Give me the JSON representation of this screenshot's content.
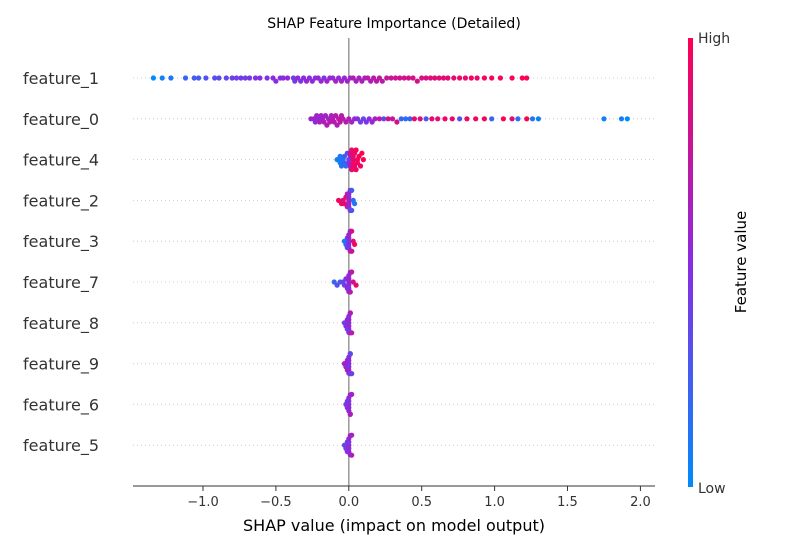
{
  "chart_data": {
    "type": "scatter",
    "title": "SHAP Feature Importance (Detailed)",
    "xlabel": "SHAP value (impact on model output)",
    "xlim": [
      -1.48,
      2.1
    ],
    "xticks": [
      -1.0,
      -0.5,
      0.0,
      0.5,
      1.0,
      1.5,
      2.0
    ],
    "xtick_labels": [
      "−1.0",
      "−0.5",
      "0.0",
      "0.5",
      "1.0",
      "1.5",
      "2.0"
    ],
    "grid": false,
    "colors": {
      "low": "#008bfb",
      "mid": "#8a2be2",
      "high": "#ff0051",
      "zero_line": "#999999",
      "row_guide": "#cccccc"
    },
    "colorbar": {
      "label": "Feature value",
      "high_label": "High",
      "low_label": "Low"
    },
    "features": [
      {
        "name": "feature_1",
        "points": [
          [
            -1.34,
            0.0
          ],
          [
            -1.28,
            0.05
          ],
          [
            -1.22,
            0.1
          ],
          [
            -1.12,
            0.2
          ],
          [
            -1.06,
            0.25
          ],
          [
            -1.03,
            0.25
          ],
          [
            -0.98,
            0.3
          ],
          [
            -0.92,
            0.3
          ],
          [
            -0.89,
            0.35
          ],
          [
            -0.84,
            0.35
          ],
          [
            -0.8,
            0.4
          ],
          [
            -0.77,
            0.4
          ],
          [
            -0.74,
            0.42
          ],
          [
            -0.71,
            0.4
          ],
          [
            -0.68,
            0.45
          ],
          [
            -0.64,
            0.45
          ],
          [
            -0.61,
            0.5
          ],
          [
            -0.56,
            0.45
          ],
          [
            -0.52,
            0.5
          ],
          [
            -0.5,
            0.5
          ],
          [
            -0.47,
            0.52
          ],
          [
            -0.45,
            0.48
          ],
          [
            -0.42,
            0.55
          ],
          [
            -0.38,
            0.4
          ],
          [
            -0.37,
            0.42
          ],
          [
            -0.35,
            0.55
          ],
          [
            -0.33,
            0.45
          ],
          [
            -0.31,
            0.5
          ],
          [
            -0.29,
            0.55
          ],
          [
            -0.27,
            0.5
          ],
          [
            -0.25,
            0.52
          ],
          [
            -0.23,
            0.5
          ],
          [
            -0.21,
            0.55
          ],
          [
            -0.19,
            0.55
          ],
          [
            -0.17,
            0.45
          ],
          [
            -0.15,
            0.6
          ],
          [
            -0.13,
            0.55
          ],
          [
            -0.11,
            0.55
          ],
          [
            -0.09,
            0.6
          ],
          [
            -0.07,
            0.55
          ],
          [
            -0.05,
            0.6
          ],
          [
            -0.03,
            0.55
          ],
          [
            -0.01,
            0.6
          ],
          [
            0.01,
            0.6
          ],
          [
            0.03,
            0.65
          ],
          [
            0.05,
            0.6
          ],
          [
            0.07,
            0.62
          ],
          [
            0.09,
            0.65
          ],
          [
            0.11,
            0.65
          ],
          [
            0.13,
            0.7
          ],
          [
            0.15,
            0.65
          ],
          [
            0.17,
            0.7
          ],
          [
            0.19,
            0.7
          ],
          [
            0.21,
            0.72
          ],
          [
            0.23,
            0.7
          ],
          [
            0.26,
            0.75
          ],
          [
            0.29,
            0.75
          ],
          [
            0.32,
            0.78
          ],
          [
            0.35,
            0.8
          ],
          [
            0.38,
            0.78
          ],
          [
            0.41,
            0.8
          ],
          [
            0.44,
            0.82
          ],
          [
            0.47,
            0.8
          ],
          [
            0.5,
            0.85
          ],
          [
            0.53,
            0.82
          ],
          [
            0.56,
            0.85
          ],
          [
            0.59,
            0.88
          ],
          [
            0.62,
            0.85
          ],
          [
            0.65,
            0.9
          ],
          [
            0.68,
            0.88
          ],
          [
            0.72,
            0.9
          ],
          [
            0.76,
            0.92
          ],
          [
            0.8,
            0.9
          ],
          [
            0.84,
            0.95
          ],
          [
            0.88,
            0.92
          ],
          [
            0.93,
            0.95
          ],
          [
            0.98,
            0.97
          ],
          [
            1.04,
            0.95
          ],
          [
            1.12,
            0.98
          ],
          [
            1.19,
            1.0
          ],
          [
            1.22,
            0.98
          ]
        ]
      },
      {
        "name": "feature_0",
        "points": [
          [
            -0.26,
            0.55
          ],
          [
            -0.24,
            0.6
          ],
          [
            -0.23,
            0.5
          ],
          [
            -0.22,
            0.6
          ],
          [
            -0.21,
            0.55
          ],
          [
            -0.2,
            0.65
          ],
          [
            -0.19,
            0.6
          ],
          [
            -0.18,
            0.6
          ],
          [
            -0.17,
            0.65
          ],
          [
            -0.16,
            0.6
          ],
          [
            -0.15,
            0.65
          ],
          [
            -0.14,
            0.6
          ],
          [
            -0.13,
            0.7
          ],
          [
            -0.12,
            0.62
          ],
          [
            -0.11,
            0.65
          ],
          [
            -0.1,
            0.68
          ],
          [
            -0.09,
            0.7
          ],
          [
            -0.08,
            0.65
          ],
          [
            -0.07,
            0.7
          ],
          [
            -0.06,
            0.72
          ],
          [
            -0.05,
            0.7
          ],
          [
            -0.04,
            0.68
          ],
          [
            -0.02,
            0.7
          ],
          [
            0.0,
            0.65
          ],
          [
            0.02,
            0.6
          ],
          [
            0.04,
            0.55
          ],
          [
            0.06,
            0.5
          ],
          [
            0.08,
            0.4
          ],
          [
            0.1,
            0.35
          ],
          [
            0.12,
            0.45
          ],
          [
            0.14,
            0.5
          ],
          [
            0.16,
            0.55
          ],
          [
            0.18,
            0.6
          ],
          [
            0.21,
            0.7
          ],
          [
            0.24,
            0.35
          ],
          [
            0.27,
            0.8
          ],
          [
            0.3,
            0.75
          ],
          [
            0.33,
            0.8
          ],
          [
            0.36,
            0.2
          ],
          [
            0.39,
            0.15
          ],
          [
            0.42,
            0.2
          ],
          [
            0.45,
            0.9
          ],
          [
            0.49,
            0.85
          ],
          [
            0.53,
            0.25
          ],
          [
            0.57,
            0.9
          ],
          [
            0.61,
            0.85
          ],
          [
            0.66,
            0.95
          ],
          [
            0.71,
            0.9
          ],
          [
            0.76,
            0.3
          ],
          [
            0.81,
            0.95
          ],
          [
            0.87,
            0.95
          ],
          [
            0.93,
            0.95
          ],
          [
            0.98,
            0.2
          ],
          [
            1.06,
            1.0
          ],
          [
            1.12,
            0.85
          ],
          [
            1.16,
            0.15
          ],
          [
            1.22,
            1.0
          ],
          [
            1.26,
            0.1
          ],
          [
            1.3,
            0.05
          ],
          [
            1.75,
            0.05
          ],
          [
            1.87,
            0.05
          ],
          [
            1.91,
            0.0
          ]
        ]
      },
      {
        "name": "feature_4",
        "points": [
          [
            -0.08,
            0.0
          ],
          [
            -0.07,
            0.1
          ],
          [
            -0.06,
            0.05
          ],
          [
            -0.05,
            0.15
          ],
          [
            -0.04,
            0.1
          ],
          [
            -0.03,
            0.2
          ],
          [
            -0.02,
            0.15
          ],
          [
            -0.01,
            0.3
          ],
          [
            0.0,
            0.35
          ],
          [
            0.0,
            0.5
          ],
          [
            0.01,
            0.6
          ],
          [
            0.01,
            0.7
          ],
          [
            0.02,
            0.85
          ],
          [
            0.02,
            0.9
          ],
          [
            0.03,
            0.9
          ],
          [
            0.03,
            0.95
          ],
          [
            0.04,
            0.95
          ],
          [
            0.04,
            0.9
          ],
          [
            0.05,
            1.0
          ],
          [
            0.05,
            0.95
          ],
          [
            0.06,
            0.95
          ],
          [
            0.07,
            1.0
          ],
          [
            0.08,
            0.95
          ],
          [
            0.09,
            1.0
          ],
          [
            0.1,
            1.0
          ],
          [
            0.01,
            0.8
          ],
          [
            -0.03,
            0.25
          ],
          [
            -0.06,
            0.1
          ],
          [
            0.02,
            0.85
          ],
          [
            0.04,
            0.9
          ],
          [
            0.06,
            0.92
          ],
          [
            0.03,
            0.88
          ]
        ]
      },
      {
        "name": "feature_2",
        "points": [
          [
            -0.07,
            0.95
          ],
          [
            -0.05,
            0.9
          ],
          [
            -0.04,
            0.85
          ],
          [
            -0.03,
            0.9
          ],
          [
            -0.02,
            0.85
          ],
          [
            -0.01,
            0.8
          ],
          [
            0.0,
            0.7
          ],
          [
            0.0,
            0.6
          ],
          [
            0.0,
            0.5
          ],
          [
            0.0,
            0.55
          ],
          [
            0.01,
            0.4
          ],
          [
            0.01,
            0.45
          ],
          [
            0.01,
            0.35
          ],
          [
            0.02,
            0.3
          ],
          [
            0.02,
            0.25
          ],
          [
            0.03,
            0.2
          ],
          [
            0.04,
            0.1
          ],
          [
            0.01,
            0.5
          ],
          [
            -0.01,
            0.7
          ],
          [
            0.0,
            0.6
          ]
        ]
      },
      {
        "name": "feature_3",
        "points": [
          [
            -0.03,
            0.1
          ],
          [
            -0.02,
            0.2
          ],
          [
            -0.01,
            0.3
          ],
          [
            0.0,
            0.4
          ],
          [
            0.0,
            0.5
          ],
          [
            0.0,
            0.55
          ],
          [
            0.01,
            0.5
          ],
          [
            0.01,
            0.6
          ],
          [
            0.01,
            0.65
          ],
          [
            0.02,
            0.7
          ],
          [
            0.02,
            0.8
          ],
          [
            0.03,
            0.85
          ],
          [
            0.04,
            0.95
          ],
          [
            0.0,
            0.45
          ],
          [
            0.0,
            0.6
          ],
          [
            -0.01,
            0.35
          ],
          [
            0.01,
            0.55
          ],
          [
            0.02,
            0.75
          ]
        ]
      },
      {
        "name": "feature_7",
        "points": [
          [
            -0.1,
            0.2
          ],
          [
            -0.08,
            0.3
          ],
          [
            -0.06,
            0.25
          ],
          [
            -0.04,
            0.35
          ],
          [
            -0.03,
            0.4
          ],
          [
            -0.02,
            0.45
          ],
          [
            -0.01,
            0.5
          ],
          [
            0.0,
            0.5
          ],
          [
            0.0,
            0.55
          ],
          [
            0.0,
            0.6
          ],
          [
            0.0,
            0.45
          ],
          [
            0.01,
            0.6
          ],
          [
            0.01,
            0.65
          ],
          [
            0.02,
            0.7
          ],
          [
            0.03,
            0.8
          ],
          [
            0.05,
            0.9
          ],
          [
            0.0,
            0.52
          ],
          [
            0.0,
            0.58
          ]
        ]
      },
      {
        "name": "feature_8",
        "points": [
          [
            -0.03,
            0.4
          ],
          [
            -0.02,
            0.45
          ],
          [
            -0.01,
            0.5
          ],
          [
            0.0,
            0.5
          ],
          [
            0.0,
            0.55
          ],
          [
            0.0,
            0.6
          ],
          [
            0.0,
            0.45
          ],
          [
            0.01,
            0.6
          ],
          [
            0.01,
            0.55
          ],
          [
            0.02,
            0.7
          ],
          [
            0.0,
            0.5
          ],
          [
            0.0,
            0.48
          ],
          [
            0.01,
            0.65
          ],
          [
            -0.01,
            0.4
          ]
        ]
      },
      {
        "name": "feature_9",
        "points": [
          [
            -0.03,
            0.6
          ],
          [
            -0.02,
            0.55
          ],
          [
            -0.01,
            0.5
          ],
          [
            0.0,
            0.5
          ],
          [
            0.0,
            0.45
          ],
          [
            0.0,
            0.55
          ],
          [
            0.0,
            0.6
          ],
          [
            0.01,
            0.5
          ],
          [
            0.01,
            0.45
          ],
          [
            0.02,
            0.4
          ],
          [
            0.0,
            0.52
          ],
          [
            0.0,
            0.48
          ],
          [
            -0.01,
            0.65
          ],
          [
            0.01,
            0.35
          ]
        ]
      },
      {
        "name": "feature_6",
        "points": [
          [
            -0.02,
            0.4
          ],
          [
            -0.01,
            0.45
          ],
          [
            0.0,
            0.5
          ],
          [
            0.0,
            0.55
          ],
          [
            0.0,
            0.45
          ],
          [
            0.0,
            0.5
          ],
          [
            0.01,
            0.6
          ],
          [
            0.01,
            0.55
          ],
          [
            0.02,
            0.6
          ],
          [
            0.0,
            0.52
          ],
          [
            -0.01,
            0.4
          ],
          [
            0.01,
            0.65
          ]
        ]
      },
      {
        "name": "feature_5",
        "points": [
          [
            -0.03,
            0.35
          ],
          [
            -0.02,
            0.4
          ],
          [
            -0.01,
            0.45
          ],
          [
            0.0,
            0.5
          ],
          [
            0.0,
            0.55
          ],
          [
            0.0,
            0.45
          ],
          [
            0.0,
            0.5
          ],
          [
            0.01,
            0.55
          ],
          [
            0.01,
            0.6
          ],
          [
            0.02,
            0.65
          ],
          [
            0.0,
            0.52
          ],
          [
            -0.01,
            0.48
          ],
          [
            0.02,
            0.6
          ]
        ]
      }
    ]
  }
}
